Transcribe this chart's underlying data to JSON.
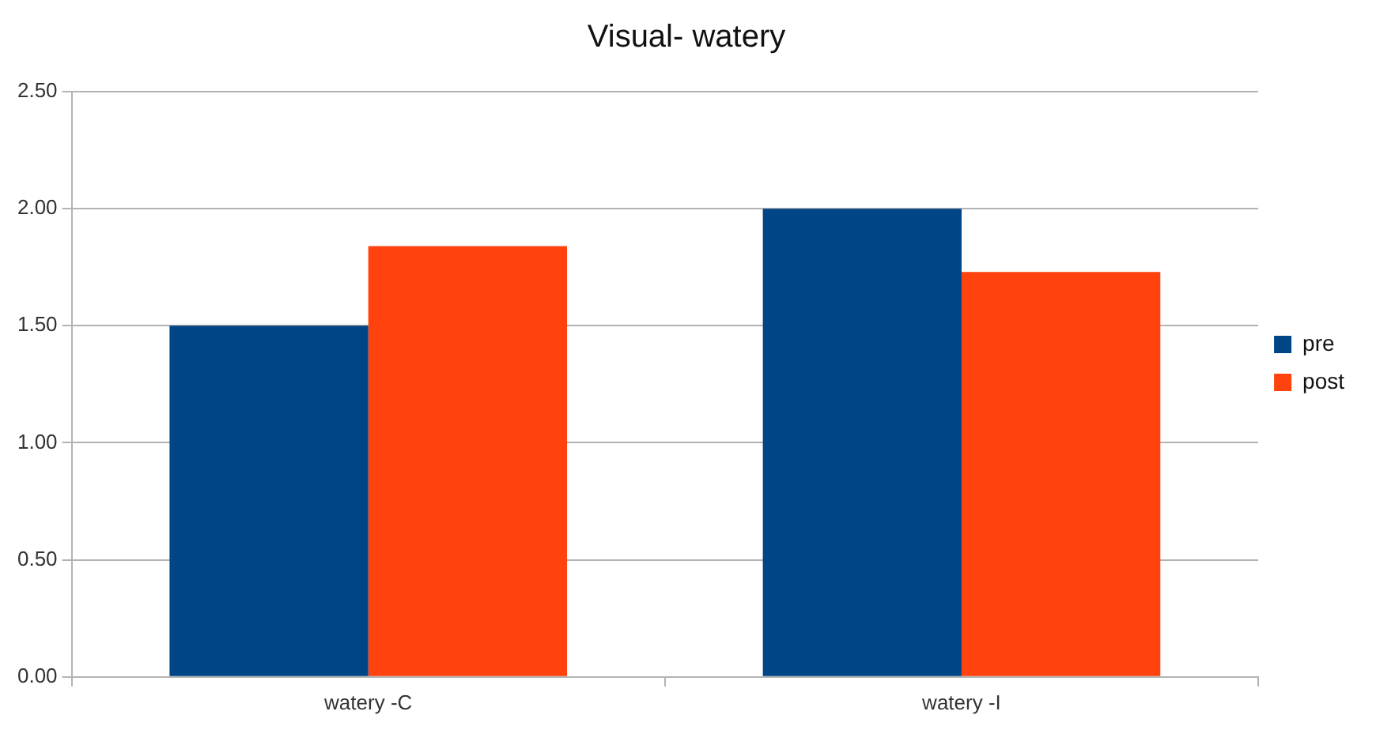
{
  "chart_data": {
    "type": "bar",
    "title": "Visual- watery",
    "categories": [
      "watery -C",
      "watery -I"
    ],
    "series": [
      {
        "name": "pre",
        "color": "#004586",
        "values": [
          1.5,
          2.0
        ]
      },
      {
        "name": "post",
        "color": "#ff420e",
        "values": [
          1.84,
          1.73
        ]
      }
    ],
    "ylim": [
      0,
      2.5
    ],
    "yticks": [
      {
        "value": 0,
        "label": "0.00"
      },
      {
        "value": 0.5,
        "label": "0.50"
      },
      {
        "value": 1,
        "label": "1.00"
      },
      {
        "value": 1.5,
        "label": "1.50"
      },
      {
        "value": 2,
        "label": "2.00"
      },
      {
        "value": 2.5,
        "label": "2.50"
      }
    ],
    "grid": "y",
    "legend": "right"
  }
}
